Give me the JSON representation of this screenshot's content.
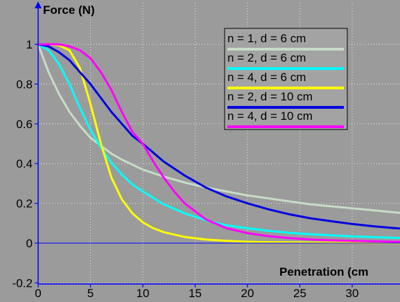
{
  "chart_data": {
    "type": "line",
    "ylabel": "Force (N)",
    "xlabel": "Penetration (cm",
    "xlim": [
      0,
      35
    ],
    "ylim": [
      -0.2,
      1.1
    ],
    "x_ticks": [
      0,
      5,
      10,
      15,
      20,
      25,
      30
    ],
    "y_ticks": [
      -0.2,
      0,
      0.2,
      0.4,
      0.6,
      0.8,
      1
    ],
    "x_tick_labels": [
      "0",
      "5",
      "10",
      "15",
      "20",
      "25",
      "30"
    ],
    "y_tick_labels": [
      "-0.2",
      "0",
      "0.2",
      "0.4",
      "0.6",
      "0.8",
      "1"
    ],
    "grid": true,
    "legend_position": "top-right",
    "background_color": "#9b9b9b",
    "axis_color": "#0000ff",
    "series": [
      {
        "name": "n = 1, d = 6 cm",
        "color": "#c8dcc8",
        "x": [
          0,
          1,
          2,
          3,
          4,
          5,
          6,
          7,
          8,
          9,
          10,
          12,
          14,
          16,
          18,
          20,
          22,
          24,
          26,
          28,
          30,
          32,
          34,
          35
        ],
        "y": [
          1,
          0.86,
          0.75,
          0.66,
          0.59,
          0.53,
          0.49,
          0.45,
          0.42,
          0.395,
          0.37,
          0.335,
          0.305,
          0.28,
          0.26,
          0.24,
          0.225,
          0.21,
          0.195,
          0.185,
          0.175,
          0.165,
          0.155,
          0.15
        ]
      },
      {
        "name": "n = 2, d = 6 cm",
        "color": "#00ffff",
        "x": [
          0,
          1,
          2,
          3,
          4,
          5,
          6,
          7,
          8,
          9,
          10,
          12,
          14,
          16,
          18,
          20,
          22,
          24,
          26,
          28,
          30,
          32,
          34,
          35
        ],
        "y": [
          1,
          0.97,
          0.9,
          0.8,
          0.68,
          0.57,
          0.48,
          0.405,
          0.345,
          0.295,
          0.26,
          0.195,
          0.15,
          0.115,
          0.09,
          0.075,
          0.062,
          0.052,
          0.045,
          0.039,
          0.034,
          0.03,
          0.027,
          0.025
        ]
      },
      {
        "name": "n = 4, d = 6 cm",
        "color": "#ffff00",
        "x": [
          0,
          1,
          2,
          3,
          4,
          5,
          6,
          7,
          8,
          9,
          10,
          11,
          12,
          14,
          16,
          18,
          20,
          22,
          24,
          26,
          28,
          30,
          32,
          34,
          35
        ],
        "y": [
          1,
          1,
          0.995,
          0.97,
          0.88,
          0.7,
          0.5,
          0.33,
          0.22,
          0.15,
          0.105,
          0.075,
          0.055,
          0.031,
          0.018,
          0.011,
          0.007,
          0.005,
          0.004,
          0.003,
          0.002,
          0.002,
          0.001,
          0.001,
          0.001
        ]
      },
      {
        "name": "n = 2, d = 10 cm",
        "color": "#0000e0",
        "x": [
          0,
          1,
          2,
          3,
          4,
          5,
          6,
          7,
          8,
          9,
          10,
          12,
          14,
          16,
          18,
          20,
          22,
          24,
          26,
          28,
          30,
          32,
          34,
          35
        ],
        "y": [
          1,
          0.99,
          0.96,
          0.92,
          0.86,
          0.8,
          0.73,
          0.66,
          0.6,
          0.54,
          0.5,
          0.41,
          0.34,
          0.28,
          0.235,
          0.2,
          0.17,
          0.145,
          0.125,
          0.11,
          0.096,
          0.085,
          0.076,
          0.072
        ]
      },
      {
        "name": "n = 4, d = 10 cm",
        "color": "#ff00ff",
        "x": [
          0,
          1,
          2,
          3,
          4,
          5,
          6,
          7,
          8,
          9,
          10,
          11,
          12,
          13,
          14,
          15,
          16,
          18,
          20,
          22,
          24,
          26,
          28,
          30,
          32,
          34,
          35
        ],
        "y": [
          1,
          1,
          1,
          0.99,
          0.97,
          0.93,
          0.86,
          0.77,
          0.66,
          0.56,
          0.5,
          0.41,
          0.33,
          0.26,
          0.2,
          0.16,
          0.12,
          0.075,
          0.05,
          0.035,
          0.025,
          0.018,
          0.014,
          0.011,
          0.009,
          0.007,
          0.006
        ]
      }
    ]
  }
}
